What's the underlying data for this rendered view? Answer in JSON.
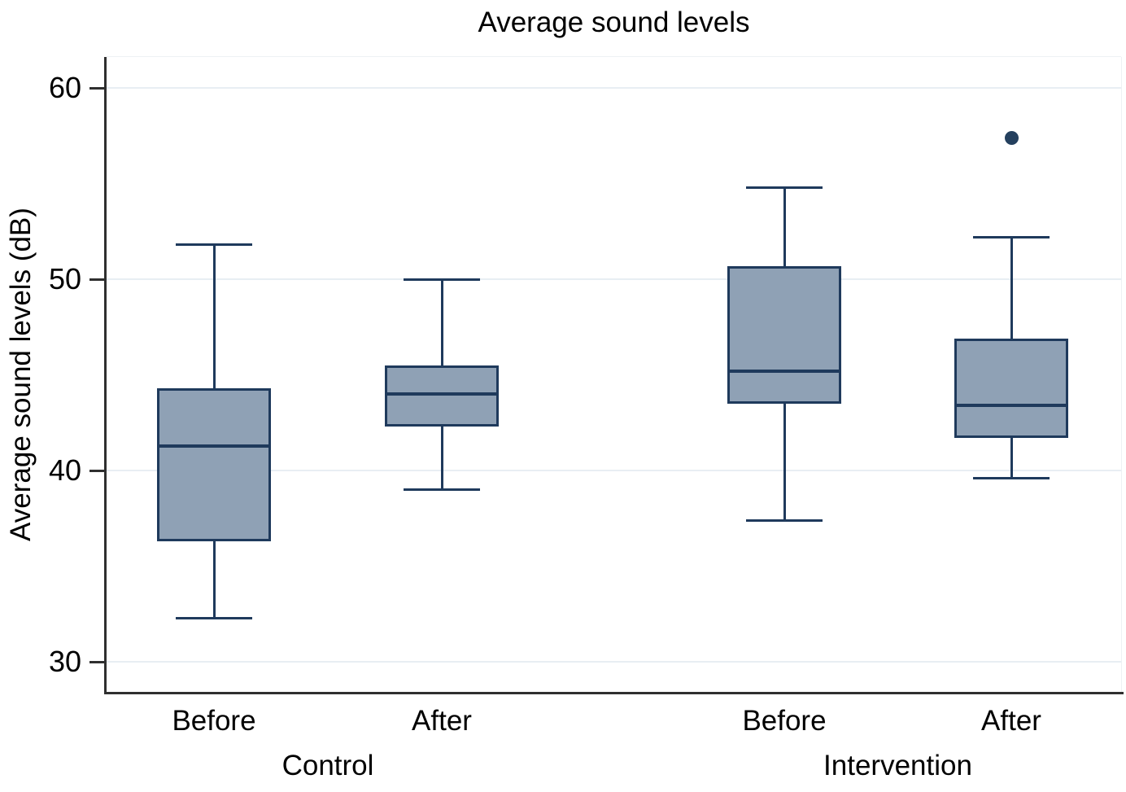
{
  "figure": {
    "title": "Average sound levels",
    "ylabel": "Average sound levels (dB)"
  },
  "colors": {
    "box_fill": "#8fa1b5",
    "box_stroke": "#1f3a5c",
    "median": "#1f3a5c",
    "outlier": "#24405e",
    "gridline": "#e8eef3",
    "axis": "#2f2f2f",
    "text": "#000000",
    "plot_border_faint": "#eef1f4"
  },
  "chart_data": {
    "type": "box",
    "title": "Average sound levels",
    "ylabel": "Average sound levels (dB)",
    "xlabel": "",
    "ylim": [
      28.4,
      61.6
    ],
    "yticks": [
      30,
      40,
      50,
      60
    ],
    "grid": true,
    "legend": "none",
    "groups": [
      {
        "label": "Control",
        "boxes": [
          {
            "label": "Before",
            "whislo": 32.3,
            "q1": 36.3,
            "med": 41.3,
            "q3": 44.3,
            "whishi": 51.8,
            "outliers": []
          },
          {
            "label": "After",
            "whislo": 39.0,
            "q1": 42.3,
            "med": 44.0,
            "q3": 45.5,
            "whishi": 50.0,
            "outliers": []
          }
        ]
      },
      {
        "label": "Intervention",
        "boxes": [
          {
            "label": "Before",
            "whislo": 37.4,
            "q1": 43.5,
            "med": 45.2,
            "q3": 50.7,
            "whishi": 54.8,
            "outliers": []
          },
          {
            "label": "After",
            "whislo": 39.6,
            "q1": 41.7,
            "med": 43.4,
            "q3": 46.9,
            "whishi": 52.2,
            "outliers": [
              57.4
            ]
          }
        ]
      }
    ]
  }
}
